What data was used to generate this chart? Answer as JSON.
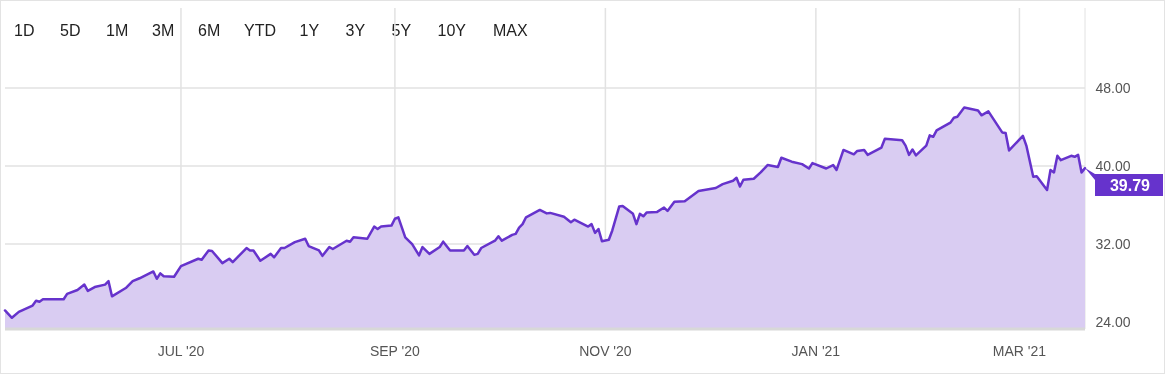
{
  "chart_data": {
    "type": "area",
    "x": [
      "2020-05-11",
      "2020-05-13",
      "2020-05-15",
      "2020-05-19",
      "2020-05-20",
      "2020-05-21",
      "2020-05-22",
      "2020-05-28",
      "2020-05-29",
      "2020-06-01",
      "2020-06-03",
      "2020-06-04",
      "2020-06-06",
      "2020-06-09",
      "2020-06-10",
      "2020-06-11",
      "2020-06-15",
      "2020-06-17",
      "2020-06-19",
      "2020-06-23",
      "2020-06-24",
      "2020-06-25",
      "2020-06-26",
      "2020-06-29",
      "2020-07-01",
      "2020-07-06",
      "2020-07-07",
      "2020-07-09",
      "2020-07-10",
      "2020-07-13",
      "2020-07-15",
      "2020-07-16",
      "2020-07-20",
      "2020-07-21",
      "2020-07-22",
      "2020-07-24",
      "2020-07-27",
      "2020-07-28",
      "2020-07-30",
      "2020-07-31",
      "2020-08-03",
      "2020-08-06",
      "2020-08-07",
      "2020-08-10",
      "2020-08-11",
      "2020-08-13",
      "2020-08-14",
      "2020-08-18",
      "2020-08-19",
      "2020-08-20",
      "2020-08-24",
      "2020-08-26",
      "2020-08-27",
      "2020-08-28",
      "2020-08-31",
      "2020-09-01",
      "2020-09-02",
      "2020-09-04",
      "2020-09-06",
      "2020-09-08",
      "2020-09-09",
      "2020-09-11",
      "2020-09-14",
      "2020-09-15",
      "2020-09-17",
      "2020-09-21",
      "2020-09-22",
      "2020-09-24",
      "2020-09-25",
      "2020-09-26",
      "2020-09-30",
      "2020-10-01",
      "2020-10-02",
      "2020-10-05",
      "2020-10-06",
      "2020-10-07",
      "2020-10-08",
      "2020-10-09",
      "2020-10-13",
      "2020-10-15",
      "2020-10-16",
      "2020-10-20",
      "2020-10-22",
      "2020-10-23",
      "2020-10-27",
      "2020-10-28",
      "2020-10-29",
      "2020-10-30",
      "2020-10-31",
      "2020-11-02",
      "2020-11-03",
      "2020-11-05",
      "2020-11-06",
      "2020-11-09",
      "2020-11-10",
      "2020-11-11",
      "2020-11-12",
      "2020-11-13",
      "2020-11-16",
      "2020-11-18",
      "2020-11-19",
      "2020-11-21",
      "2020-11-24",
      "2020-11-28",
      "2020-12-03",
      "2020-12-05",
      "2020-12-08",
      "2020-12-09",
      "2020-12-10",
      "2020-12-11",
      "2020-12-14",
      "2020-12-16",
      "2020-12-18",
      "2020-12-21",
      "2020-12-22",
      "2020-12-25",
      "2020-12-28",
      "2020-12-30",
      "2020-12-31",
      "2021-01-04",
      "2021-01-06",
      "2021-01-07",
      "2021-01-09",
      "2021-01-12",
      "2021-01-13",
      "2021-01-15",
      "2021-01-16",
      "2021-01-20",
      "2021-01-21",
      "2021-01-26",
      "2021-01-27",
      "2021-01-28",
      "2021-01-29",
      "2021-01-30",
      "2021-02-02",
      "2021-02-03",
      "2021-02-04",
      "2021-02-05",
      "2021-02-09",
      "2021-02-10",
      "2021-02-11",
      "2021-02-13",
      "2021-02-17",
      "2021-02-18",
      "2021-02-20",
      "2021-02-24",
      "2021-02-25",
      "2021-02-26",
      "2021-03-02",
      "2021-03-03",
      "2021-03-05",
      "2021-03-06",
      "2021-03-09",
      "2021-03-10",
      "2021-03-11",
      "2021-03-12",
      "2021-03-13",
      "2021-03-16",
      "2021-03-17",
      "2021-03-18",
      "2021-03-19",
      "2021-03-20"
    ],
    "series": [
      {
        "color": "#6633cc",
        "values": [
          25.2,
          24.45,
          25.06,
          25.7,
          26.2,
          26.1,
          26.35,
          26.35,
          26.9,
          27.3,
          27.85,
          27.2,
          27.6,
          27.85,
          28.2,
          26.65,
          27.5,
          28.2,
          28.5,
          29.2,
          28.45,
          29.0,
          28.7,
          28.65,
          29.75,
          30.5,
          30.4,
          31.35,
          31.3,
          30.05,
          30.5,
          30.15,
          31.6,
          31.35,
          31.35,
          30.3,
          31.0,
          30.65,
          31.6,
          31.6,
          32.2,
          32.55,
          31.8,
          31.35,
          30.8,
          31.7,
          31.5,
          32.35,
          32.25,
          32.7,
          32.55,
          33.8,
          33.55,
          33.8,
          33.9,
          34.6,
          34.75,
          32.7,
          32.0,
          30.85,
          31.7,
          31.0,
          31.7,
          32.25,
          31.35,
          31.35,
          31.8,
          30.9,
          31.0,
          31.6,
          32.35,
          32.8,
          32.35,
          32.95,
          33.05,
          33.7,
          34.05,
          34.75,
          35.5,
          35.15,
          35.2,
          34.8,
          34.25,
          34.5,
          33.8,
          34.05,
          33.15,
          33.55,
          32.3,
          32.45,
          33.4,
          35.85,
          35.9,
          35.1,
          34.05,
          35.1,
          34.85,
          35.25,
          35.3,
          35.75,
          35.4,
          36.35,
          36.4,
          37.45,
          37.75,
          38.15,
          38.5,
          38.8,
          37.9,
          38.6,
          38.7,
          39.35,
          40.1,
          39.9,
          40.85,
          40.45,
          40.2,
          39.75,
          40.3,
          39.75,
          40.1,
          39.6,
          41.65,
          41.2,
          41.55,
          41.65,
          41.15,
          41.9,
          42.8,
          42.65,
          42.1,
          41.15,
          41.7,
          41.1,
          42.1,
          43.15,
          43.0,
          43.65,
          44.45,
          44.95,
          45.05,
          46.0,
          45.7,
          45.2,
          45.6,
          43.45,
          43.4,
          41.6,
          43.1,
          42.1,
          38.9,
          38.95,
          37.55,
          39.6,
          39.35,
          41.05,
          40.6,
          41.05,
          40.95,
          41.15,
          39.35,
          39.79
        ]
      }
    ],
    "xlim": [
      "2020-05-11",
      "2021-03-20"
    ],
    "xticks": [
      {
        "value": "2020-07-01",
        "label": "JUL '20"
      },
      {
        "value": "2020-09-01",
        "label": "SEP '20"
      },
      {
        "value": "2020-11-01",
        "label": "NOV '20"
      },
      {
        "value": "2021-01-01",
        "label": "JAN '21"
      },
      {
        "value": "2021-03-01",
        "label": "MAR '21"
      }
    ],
    "ylim": [
      23.3,
      56.2
    ],
    "yticks": [
      {
        "value": 24,
        "label": "24.00"
      },
      {
        "value": 32,
        "label": "32.00"
      },
      {
        "value": 40,
        "label": "40.00"
      },
      {
        "value": 48,
        "label": "48.00"
      }
    ],
    "grid": true,
    "annotations": [
      "1D",
      "5D",
      "1M",
      "3M",
      "6M",
      "YTD",
      "1Y",
      "3Y",
      "5Y",
      "10Y",
      "MAX",
      {
        "text": "39.79",
        "x": "2021-03-20",
        "y": 39.79
      }
    ]
  }
}
